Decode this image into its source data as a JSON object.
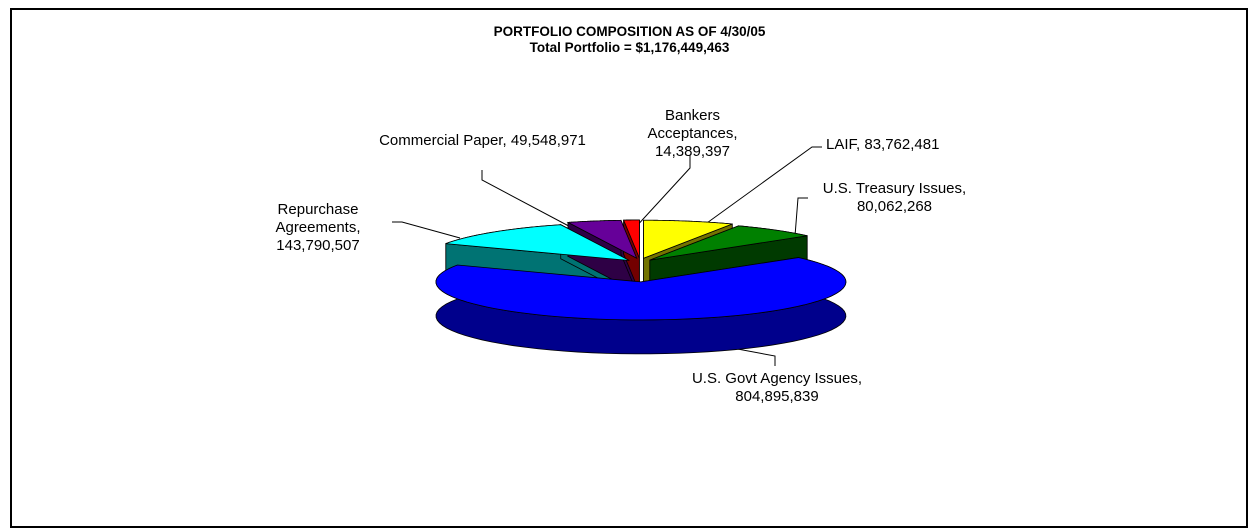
{
  "chart_data": {
    "type": "pie3d",
    "title": "PORTFOLIO COMPOSITION AS OF 4/30/05",
    "subtitle": "Total Portfolio = $1,176,449,463",
    "categories": [
      "LAIF,",
      "U.S. Treasury Issues,",
      "U.S. Govt Agency Issues,",
      "Repurchase Agreements,",
      "Commercial Paper,",
      "Bankers Acceptances,"
    ],
    "values": [
      83762481,
      80062268,
      804895839,
      143790507,
      49548971,
      14389397
    ],
    "value_labels": [
      "83,762,481",
      "80,062,268",
      "804,895,839",
      "143,790,507",
      "49,548,971",
      "14,389,397"
    ],
    "colors": [
      "#ffff00",
      "#008000",
      "#0000ff",
      "#00ffff",
      "#660099",
      "#ff0000"
    ]
  }
}
